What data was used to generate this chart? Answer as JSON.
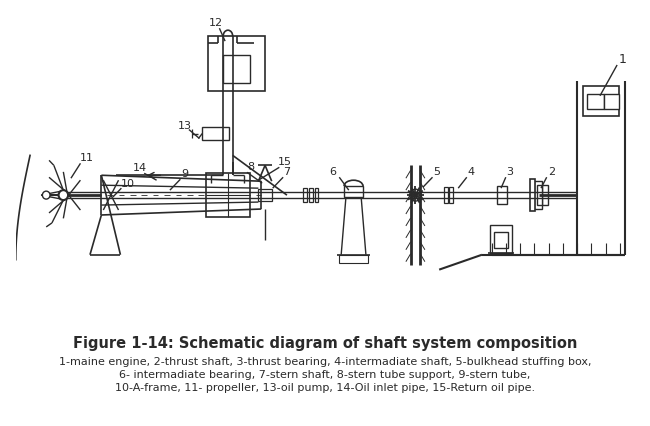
{
  "title": "Figure 1-14: Schematic diagram of shaft system composition",
  "caption_line1": "1-maine engine, 2-thrust shaft, 3-thrust bearing, 4-intermadiate shaft, 5-bulkhead stuffing box,",
  "caption_line2": "6- intermadiate bearing, 7-stern shaft, 8-stern tube support, 9-stern tube,",
  "caption_line3": "10-A-frame, 11- propeller, 13-oil pump, 14-Oil inlet pipe, 15-Return oil pipe.",
  "bg_color": "#ffffff",
  "line_color": "#2a2a2a",
  "title_fontsize": 10.5,
  "caption_fontsize": 8.0,
  "fig_width": 6.5,
  "fig_height": 4.26,
  "dpi": 100
}
